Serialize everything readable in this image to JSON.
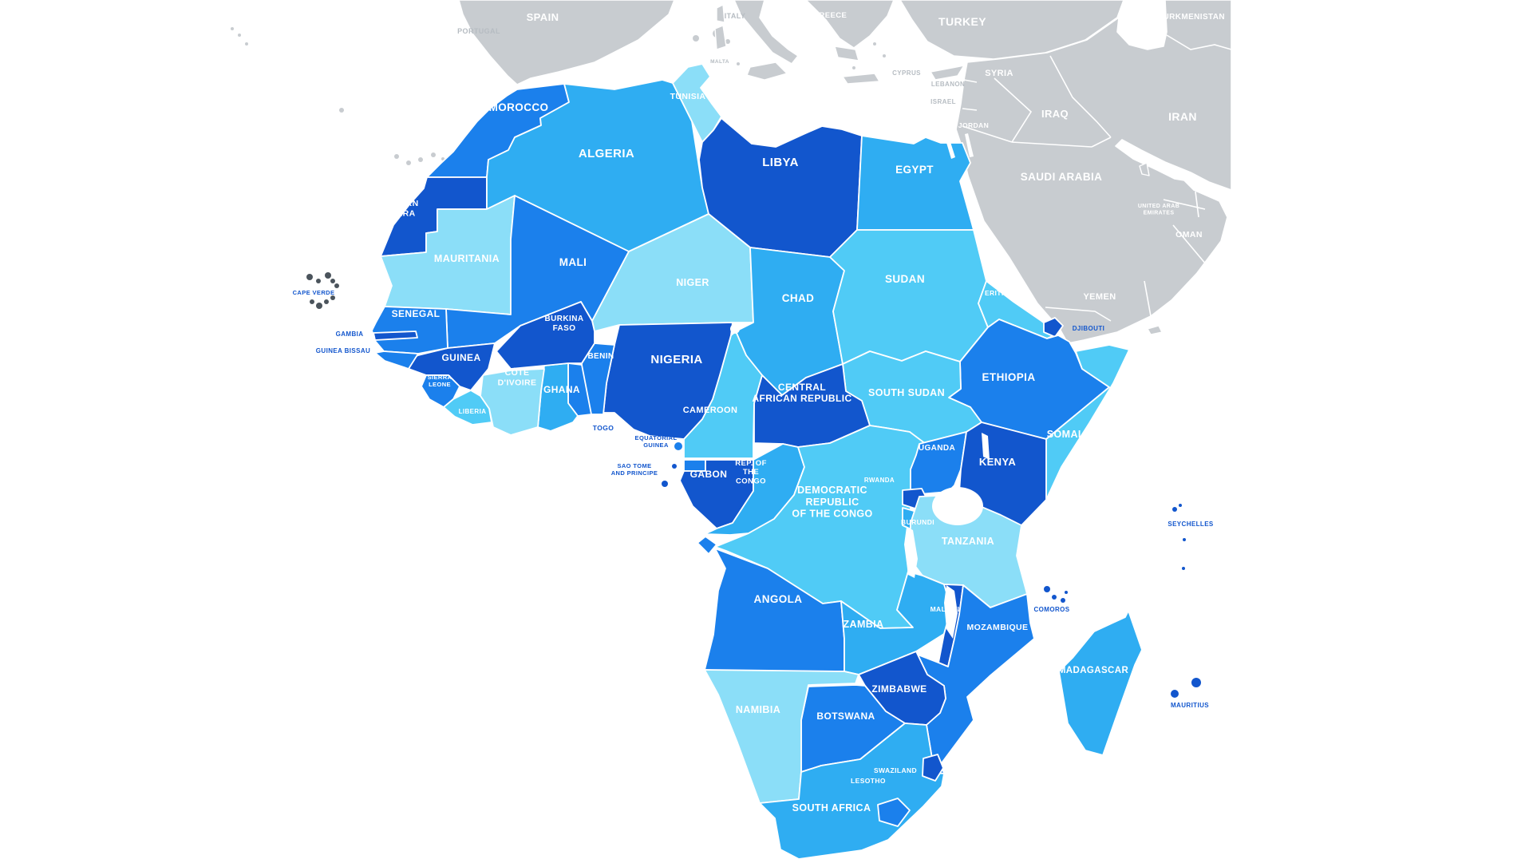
{
  "map": {
    "region_label": "Africa political map with countries shaded in blues",
    "sea_color": "#ffffff",
    "border_color": "#ffffff",
    "foreign_land_color": "#c8ccd0",
    "foreign_label_color": "#ffffff",
    "foreign_label_muted_color": "#b6bcc2",
    "outside_label_color": "#1256cd",
    "cape_verde_island_color": "#4b545c",
    "shades": {
      "s1": "#8bdef8",
      "s2": "#50cbf6",
      "s3": "#2fadf2",
      "s4": "#1b80ec",
      "s5": "#1256cd"
    }
  },
  "countries": [
    {
      "id": "morocco",
      "name": "MOROCCO",
      "shade": "s4",
      "label": "white",
      "fs": 13.5
    },
    {
      "id": "western_sahara",
      "name": "WESTERN\nSAHARA",
      "shade": "s5",
      "label": "white",
      "fs": 10.5
    },
    {
      "id": "algeria",
      "name": "ALGERIA",
      "shade": "s3",
      "label": "white",
      "fs": 15
    },
    {
      "id": "tunisia",
      "name": "TUNISIA",
      "shade": "s1",
      "label": "white",
      "fs": 10.5
    },
    {
      "id": "libya",
      "name": "LIBYA",
      "shade": "s5",
      "label": "white",
      "fs": 15
    },
    {
      "id": "egypt",
      "name": "EGYPT",
      "shade": "s3",
      "label": "white",
      "fs": 13.5
    },
    {
      "id": "mauritania",
      "name": "MAURITANIA",
      "shade": "s1",
      "label": "white",
      "fs": 12.5
    },
    {
      "id": "mali",
      "name": "MALI",
      "shade": "s4",
      "label": "white",
      "fs": 13.5
    },
    {
      "id": "niger",
      "name": "NIGER",
      "shade": "s1",
      "label": "white",
      "fs": 12.5
    },
    {
      "id": "chad",
      "name": "CHAD",
      "shade": "s3",
      "label": "white",
      "fs": 13.5
    },
    {
      "id": "sudan",
      "name": "SUDAN",
      "shade": "s2",
      "label": "white",
      "fs": 13.5
    },
    {
      "id": "eritrea",
      "name": "ERITREA",
      "shade": "s2",
      "label": "white",
      "fs": 8.5
    },
    {
      "id": "djibouti",
      "name": "DJIBOUTI",
      "shade": "s5",
      "label": "blue",
      "fs": 8
    },
    {
      "id": "ethiopia",
      "name": "ETHIOPIA",
      "shade": "s4",
      "label": "white",
      "fs": 13.5
    },
    {
      "id": "somalia",
      "name": "SOMALIA",
      "shade": "s2",
      "label": "white",
      "fs": 12.5
    },
    {
      "id": "south_sudan",
      "name": "SOUTH SUDAN",
      "shade": "s2",
      "label": "white",
      "fs": 12.5
    },
    {
      "id": "central_african_republic",
      "name": "CENTRAL\nAFRICAN REPUBLIC",
      "shade": "s5",
      "label": "white",
      "fs": 12
    },
    {
      "id": "cameroon",
      "name": "CAMEROON",
      "shade": "s2",
      "label": "white",
      "fs": 11
    },
    {
      "id": "nigeria",
      "name": "NIGERIA",
      "shade": "s5",
      "label": "white",
      "fs": 15
    },
    {
      "id": "benin",
      "name": "BENIN",
      "shade": "s4",
      "label": "white",
      "fs": 10
    },
    {
      "id": "togo",
      "name": "TOGO",
      "shade": "s4",
      "label": "blue",
      "fs": 8.5
    },
    {
      "id": "ghana",
      "name": "GHANA",
      "shade": "s3",
      "label": "white",
      "fs": 12
    },
    {
      "id": "cote_divoire",
      "name": "CÔTE\nD'IVOIRE",
      "shade": "s1",
      "label": "white",
      "fs": 10.5
    },
    {
      "id": "burkina_faso",
      "name": "BURKINA\nFASO",
      "shade": "s5",
      "label": "white",
      "fs": 10
    },
    {
      "id": "guinea",
      "name": "GUINEA",
      "shade": "s5",
      "label": "white",
      "fs": 12
    },
    {
      "id": "senegal",
      "name": "SENEGAL",
      "shade": "s4",
      "label": "white",
      "fs": 12
    },
    {
      "id": "gambia",
      "name": "GAMBIA",
      "shade": "s5",
      "label": "blue",
      "fs": 8
    },
    {
      "id": "guinea_bissau",
      "name": "GUINEA BISSAU",
      "shade": "s4",
      "label": "blue",
      "fs": 8
    },
    {
      "id": "sierra_leone",
      "name": "SIERRA\nLEONE",
      "shade": "s4",
      "label": "white",
      "fs": 7.5
    },
    {
      "id": "liberia",
      "name": "LIBERIA",
      "shade": "s2",
      "label": "white",
      "fs": 8
    },
    {
      "id": "cape_verde",
      "name": "CAPE VERDE",
      "shade": "s5",
      "label": "blue",
      "fs": 7.5
    },
    {
      "id": "equatorial_guinea",
      "name": "EQUATORIAL\nGUINEA",
      "shade": "s4",
      "label": "blue",
      "fs": 7.5
    },
    {
      "id": "sao_tome",
      "name": "SAO TOME\nAND PRINCIPE",
      "shade": "s5",
      "label": "blue",
      "fs": 7.5
    },
    {
      "id": "gabon",
      "name": "GABON",
      "shade": "s5",
      "label": "white",
      "fs": 12
    },
    {
      "id": "congo",
      "name": "REP. OF\nTHE\nCONGO",
      "shade": "s3",
      "label": "white",
      "fs": 9.5
    },
    {
      "id": "drc",
      "name": "DEMOCRATIC\nREPUBLIC\nOF THE CONGO",
      "shade": "s2",
      "label": "white",
      "fs": 12.5
    },
    {
      "id": "cabinda",
      "name": "",
      "shade": "s4",
      "label": "white",
      "fs": 8
    },
    {
      "id": "uganda",
      "name": "UGANDA",
      "shade": "s4",
      "label": "white",
      "fs": 10
    },
    {
      "id": "kenya",
      "name": "KENYA",
      "shade": "s5",
      "label": "white",
      "fs": 13
    },
    {
      "id": "rwanda",
      "name": "RWANDA",
      "shade": "s5",
      "label": "white",
      "fs": 8
    },
    {
      "id": "burundi",
      "name": "BURUNDI",
      "shade": "s3",
      "label": "white",
      "fs": 8.5
    },
    {
      "id": "tanzania",
      "name": "TANZANIA",
      "shade": "s1",
      "label": "white",
      "fs": 12.5
    },
    {
      "id": "angola",
      "name": "ANGOLA",
      "shade": "s4",
      "label": "white",
      "fs": 13.5
    },
    {
      "id": "zambia",
      "name": "ZAMBIA",
      "shade": "s3",
      "label": "white",
      "fs": 12.5
    },
    {
      "id": "malawi",
      "name": "MALAWI",
      "shade": "s5",
      "label": "white",
      "fs": 8.5
    },
    {
      "id": "mozambique",
      "name": "MOZAMBIQUE",
      "shade": "s4",
      "label": "white",
      "fs": 10.5
    },
    {
      "id": "zimbabwe",
      "name": "ZIMBABWE",
      "shade": "s5",
      "label": "white",
      "fs": 12
    },
    {
      "id": "botswana",
      "name": "BOTSWANA",
      "shade": "s4",
      "label": "white",
      "fs": 12
    },
    {
      "id": "namibia",
      "name": "NAMIBIA",
      "shade": "s1",
      "label": "white",
      "fs": 12.5
    },
    {
      "id": "south_africa",
      "name": "SOUTH AFRICA",
      "shade": "s3",
      "label": "white",
      "fs": 12.5
    },
    {
      "id": "lesotho",
      "name": "LESOTHO",
      "shade": "s4",
      "label": "white",
      "fs": 8.5
    },
    {
      "id": "swaziland",
      "name": "SWAZILAND",
      "shade": "s5",
      "label": "white",
      "fs": 8.5
    },
    {
      "id": "madagascar",
      "name": "MADAGASCAR",
      "shade": "s3",
      "label": "white",
      "fs": 11.5
    },
    {
      "id": "comoros",
      "name": "COMOROS",
      "shade": "s5",
      "label": "blue",
      "fs": 8
    },
    {
      "id": "seychelles",
      "name": "SEYCHELLES",
      "shade": "s5",
      "label": "blue",
      "fs": 8
    },
    {
      "id": "mauritius",
      "name": "MAURITIUS",
      "shade": "s5",
      "label": "blue",
      "fs": 8
    }
  ],
  "foreign_labels": [
    {
      "id": "spain",
      "name": "SPAIN",
      "muted": false,
      "fs": 13
    },
    {
      "id": "portugal",
      "name": "PORTUGAL",
      "muted": true,
      "fs": 9
    },
    {
      "id": "italy",
      "name": "ITALY",
      "muted": true,
      "fs": 9
    },
    {
      "id": "malta",
      "name": "MALTA",
      "muted": true,
      "fs": 6.5
    },
    {
      "id": "greece",
      "name": "GREECE",
      "muted": false,
      "fs": 9.5
    },
    {
      "id": "turkey",
      "name": "TURKEY",
      "muted": false,
      "fs": 14
    },
    {
      "id": "cyprus",
      "name": "CYPRUS",
      "muted": true,
      "fs": 8
    },
    {
      "id": "syria",
      "name": "SYRIA",
      "muted": false,
      "fs": 11
    },
    {
      "id": "lebanon",
      "name": "LEBANON",
      "muted": true,
      "fs": 8
    },
    {
      "id": "israel",
      "name": "ISRAEL",
      "muted": true,
      "fs": 8
    },
    {
      "id": "jordan",
      "name": "JORDAN",
      "muted": false,
      "fs": 8.5
    },
    {
      "id": "iraq",
      "name": "IRAQ",
      "muted": false,
      "fs": 13
    },
    {
      "id": "iran",
      "name": "IRAN",
      "muted": false,
      "fs": 14
    },
    {
      "id": "saudi_arabia",
      "name": "SAUDI ARABIA",
      "muted": false,
      "fs": 13.5
    },
    {
      "id": "uae",
      "name": "UNITED ARAB\nEMIRATES",
      "muted": false,
      "fs": 7
    },
    {
      "id": "oman",
      "name": "OMAN",
      "muted": false,
      "fs": 10.5
    },
    {
      "id": "yemen",
      "name": "YEMEN",
      "muted": false,
      "fs": 11
    },
    {
      "id": "turkmenistan",
      "name": "TURKMENISTAN",
      "muted": false,
      "fs": 10
    }
  ]
}
